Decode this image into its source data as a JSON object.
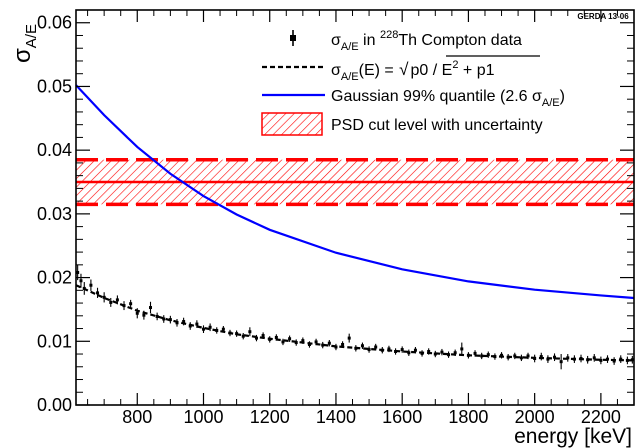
{
  "chart_data": {
    "type": "scatter",
    "tag": "GERDA 13-06",
    "xlabel": "energy [keV]",
    "ylabel": {
      "base": "σ",
      "sub": "A/E"
    },
    "xlim": [
      615,
      2300
    ],
    "ylim": [
      0,
      0.062
    ],
    "xticks": [
      800,
      1000,
      1200,
      1400,
      1600,
      1800,
      2000,
      2200
    ],
    "xtick_labels": [
      "800",
      "1000",
      "1200",
      "1400",
      "1600",
      "1800",
      "2000",
      "2200"
    ],
    "yticks": [
      0.0,
      0.01,
      0.02,
      0.03,
      0.04,
      0.05,
      0.06
    ],
    "ytick_labels": [
      "0.00",
      "0.01",
      "0.02",
      "0.03",
      "0.04",
      "0.05",
      "0.06"
    ],
    "grid": false,
    "legend_position": "top-right",
    "legend": {
      "data": {
        "pre": "σ",
        "sub": "A/E",
        "mid": " in ",
        "sup": "228",
        "post": "Th  Compton data"
      },
      "fit": {
        "pre": "σ",
        "sub": "A/E",
        "mid": "(E) = ",
        "rad": "p0 / E",
        "sup": "2",
        "post": " + p1"
      },
      "gauss": {
        "text": "Gaussian 99% quantile (2.6 σ",
        "sub": "A/E",
        "close": ")"
      },
      "band": {
        "text": "PSD cut level with uncertainty"
      }
    },
    "colors": {
      "data": "#000000",
      "fit": "#000000",
      "gauss": "#0000ff",
      "band": "#ff0000"
    },
    "psd_cut": {
      "level": 0.035,
      "low": 0.0315,
      "high": 0.0385
    },
    "gaussian_quantile": {
      "x": [
        615,
        700,
        800,
        900,
        1000,
        1100,
        1200,
        1400,
        1600,
        1800,
        2000,
        2200,
        2300
      ],
      "y": [
        0.0502,
        0.0455,
        0.0405,
        0.0363,
        0.0328,
        0.0299,
        0.0275,
        0.0239,
        0.0213,
        0.0194,
        0.0181,
        0.0172,
        0.0168
      ]
    },
    "fit_curve": {
      "x": [
        615,
        650,
        700,
        750,
        800,
        900,
        1000,
        1100,
        1200,
        1400,
        1600,
        1800,
        2000,
        2200,
        2300
      ],
      "y": [
        0.0188,
        0.018,
        0.0168,
        0.0158,
        0.0148,
        0.0133,
        0.0121,
        0.0111,
        0.0104,
        0.0092,
        0.0084,
        0.0078,
        0.0074,
        0.0071,
        0.007
      ]
    },
    "data_points": {
      "x": [
        620,
        630,
        640,
        660,
        680,
        700,
        720,
        740,
        760,
        780,
        800,
        820,
        840,
        860,
        880,
        900,
        920,
        940,
        960,
        980,
        1000,
        1020,
        1040,
        1060,
        1080,
        1100,
        1120,
        1140,
        1160,
        1180,
        1200,
        1220,
        1240,
        1260,
        1280,
        1300,
        1320,
        1340,
        1360,
        1380,
        1400,
        1420,
        1440,
        1460,
        1480,
        1500,
        1520,
        1540,
        1560,
        1580,
        1600,
        1620,
        1640,
        1660,
        1680,
        1700,
        1720,
        1740,
        1760,
        1780,
        1800,
        1820,
        1840,
        1860,
        1880,
        1900,
        1920,
        1940,
        1960,
        1980,
        2000,
        2020,
        2040,
        2060,
        2080,
        2100,
        2120,
        2140,
        2160,
        2180,
        2200,
        2220,
        2240,
        2260,
        2280,
        2295
      ],
      "y": [
        0.0208,
        0.0195,
        0.0183,
        0.0188,
        0.0176,
        0.0169,
        0.0161,
        0.0165,
        0.0156,
        0.0159,
        0.0144,
        0.0141,
        0.0153,
        0.0139,
        0.0135,
        0.0134,
        0.0129,
        0.0131,
        0.0124,
        0.0127,
        0.0119,
        0.0122,
        0.0117,
        0.0119,
        0.0113,
        0.0112,
        0.0108,
        0.0115,
        0.0105,
        0.0109,
        0.0103,
        0.0106,
        0.0099,
        0.0104,
        0.0098,
        0.0101,
        0.0095,
        0.0099,
        0.0094,
        0.0097,
        0.0091,
        0.0095,
        0.0105,
        0.0089,
        0.0093,
        0.0087,
        0.0091,
        0.0086,
        0.0088,
        0.0084,
        0.0087,
        0.0082,
        0.0086,
        0.0081,
        0.0084,
        0.008,
        0.0083,
        0.0079,
        0.0082,
        0.0088,
        0.0078,
        0.0081,
        0.0077,
        0.0079,
        0.0076,
        0.0078,
        0.0075,
        0.0077,
        0.0074,
        0.0077,
        0.0073,
        0.0076,
        0.0072,
        0.0075,
        0.0068,
        0.0074,
        0.0072,
        0.0073,
        0.0071,
        0.0074,
        0.007,
        0.0072,
        0.0069,
        0.0072,
        0.007,
        0.0071
      ],
      "yerr": [
        0.0012,
        0.0011,
        0.001,
        0.0009,
        0.0008,
        0.0008,
        0.0007,
        0.0007,
        0.0007,
        0.0006,
        0.0008,
        0.0007,
        0.0009,
        0.0006,
        0.0006,
        0.0006,
        0.0006,
        0.0006,
        0.0006,
        0.0006,
        0.0006,
        0.0006,
        0.0005,
        0.0005,
        0.0005,
        0.0005,
        0.0005,
        0.0007,
        0.0005,
        0.0005,
        0.0005,
        0.0005,
        0.0005,
        0.0005,
        0.0005,
        0.0005,
        0.0005,
        0.0005,
        0.0005,
        0.0005,
        0.0005,
        0.0005,
        0.0007,
        0.0005,
        0.0005,
        0.0005,
        0.0005,
        0.0005,
        0.0005,
        0.0005,
        0.0005,
        0.0005,
        0.0005,
        0.0005,
        0.0005,
        0.0005,
        0.0005,
        0.0005,
        0.0005,
        0.001,
        0.0005,
        0.0005,
        0.0005,
        0.0005,
        0.0005,
        0.0005,
        0.0005,
        0.0005,
        0.0005,
        0.0005,
        0.0006,
        0.0006,
        0.0006,
        0.0006,
        0.0012,
        0.0006,
        0.0006,
        0.0006,
        0.0006,
        0.0006,
        0.0006,
        0.0006,
        0.0006,
        0.0006,
        0.0006,
        0.0006
      ]
    }
  }
}
